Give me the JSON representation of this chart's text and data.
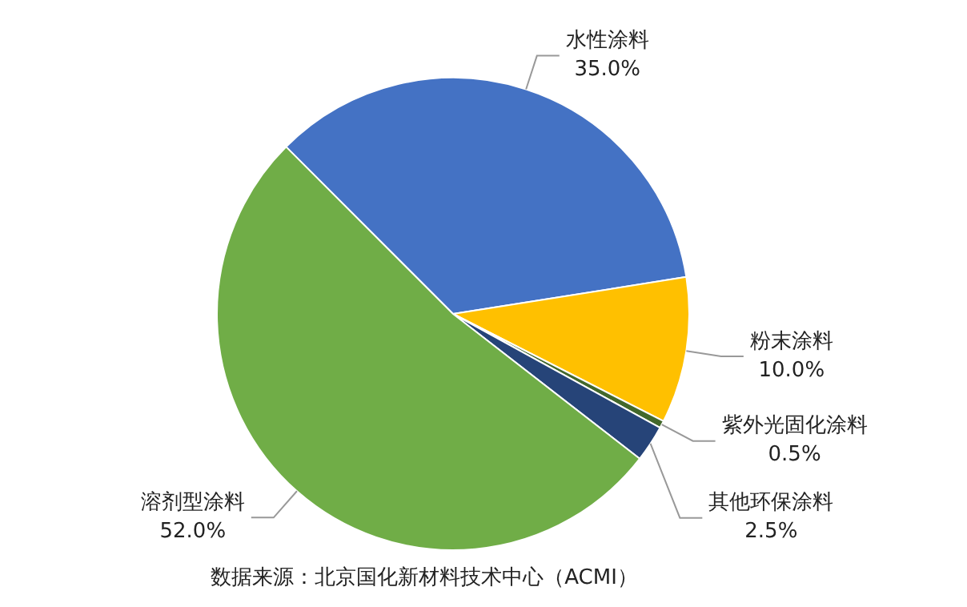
{
  "chart_data": {
    "type": "pie",
    "categories": [
      "水性涂料",
      "粉末涂料",
      "紫外光固化涂料",
      "其他环保涂料",
      "溶剂型涂料"
    ],
    "values": [
      35.0,
      10.0,
      0.5,
      2.5,
      52.0
    ],
    "value_labels": [
      "35.0%",
      "10.0%",
      "0.5%",
      "2.5%",
      "52.0%"
    ],
    "colors": [
      "#4472c4",
      "#ffc000",
      "#43682b",
      "#264478",
      "#70ad47"
    ],
    "annotations": [
      "数据来源：北京国化新材料技术中心（ACMI）"
    ],
    "legend": false
  }
}
